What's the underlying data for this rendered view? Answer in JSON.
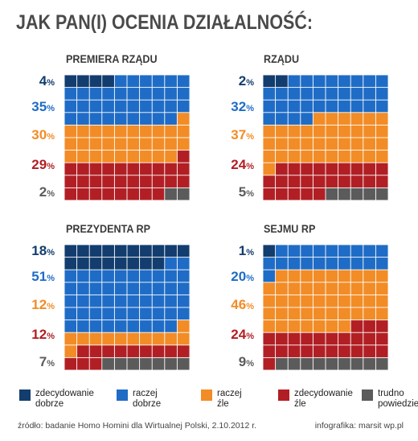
{
  "title": "JAK PAN(I) OCENIA DZIAŁALNOŚĆ:",
  "colors": {
    "zdecydowanie_dobrze": "#123d6e",
    "raczej_dobrze": "#1f6cc6",
    "raczej_zle": "#f28c26",
    "zdecydowanie_zle": "#b11f24",
    "trudno_powiedziec": "#5b5b5b"
  },
  "legend": [
    {
      "key": "zdecydowanie_dobrze",
      "line1": "zdecydowanie",
      "line2": "dobrze"
    },
    {
      "key": "raczej_dobrze",
      "line1": "raczej",
      "line2": "dobrze"
    },
    {
      "key": "raczej_zle",
      "line1": "raczej",
      "line2": "źle"
    },
    {
      "key": "zdecydowanie_zle",
      "line1": "zdecydowanie",
      "line2": "źle"
    },
    {
      "key": "trudno_powiedziec",
      "line1": "trudno",
      "line2": "powiedzieć"
    }
  ],
  "chart_data": [
    {
      "type": "waffle",
      "title": "PREMIERA RZĄDU",
      "categories": [
        "zdecydowanie dobrze",
        "raczej dobrze",
        "raczej źle",
        "zdecydowanie źle",
        "trudno powiedzieć"
      ],
      "values": [
        4,
        35,
        30,
        29,
        2
      ]
    },
    {
      "type": "waffle",
      "title": "RZĄDU",
      "categories": [
        "zdecydowanie dobrze",
        "raczej dobrze",
        "raczej źle",
        "zdecydowanie źle",
        "trudno powiedzieć"
      ],
      "values": [
        2,
        32,
        37,
        24,
        5
      ]
    },
    {
      "type": "waffle",
      "title": "PREZYDENTA RP",
      "categories": [
        "zdecydowanie dobrze",
        "raczej dobrze",
        "raczej źle",
        "zdecydowanie źle",
        "trudno powiedzieć"
      ],
      "values": [
        18,
        51,
        12,
        12,
        7
      ]
    },
    {
      "type": "waffle",
      "title": "SEJMU RP",
      "categories": [
        "zdecydowanie dobrze",
        "raczej dobrze",
        "raczej źle",
        "zdecydowanie źle",
        "trudno powiedzieć"
      ],
      "values": [
        1,
        20,
        46,
        24,
        9
      ]
    }
  ],
  "footer": {
    "source": "źródło: badanie Homo Homini dla Wirtualnej Polski, 2.10.2012 r.",
    "credit": "infografika: marsit wp.pl"
  }
}
